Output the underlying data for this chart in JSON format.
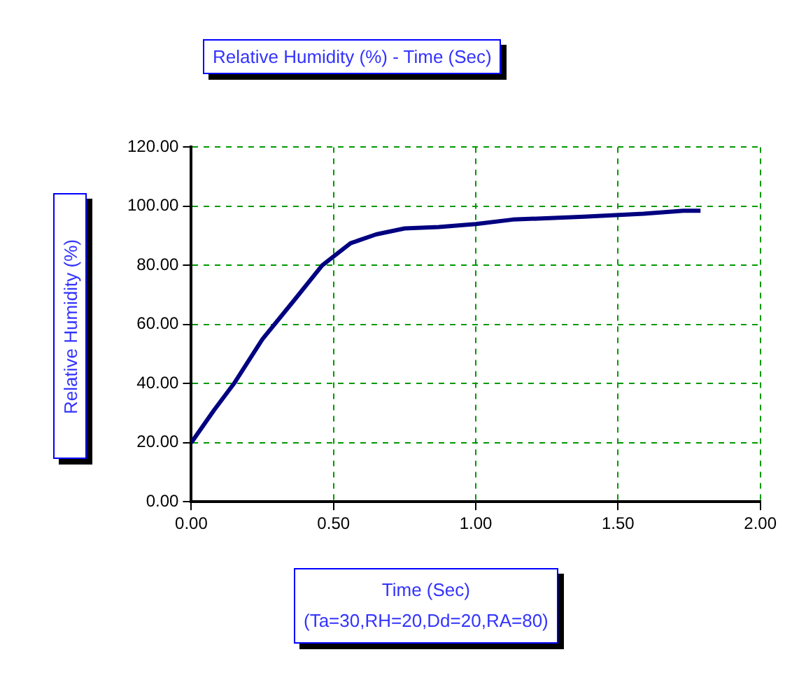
{
  "chart_data": {
    "type": "line",
    "title": "Relative Humidity (%) - Time (Sec)",
    "xlabel": "Time (Sec)",
    "ylabel": "Relative Humidity (%)",
    "annotations": [
      "(Ta=30,RH=20,Dd=20,RA=80)"
    ],
    "x": [
      0,
      0.08,
      0.15,
      0.25,
      0.36,
      0.46,
      0.5,
      0.56,
      0.65,
      0.75,
      0.87,
      1.0,
      1.13,
      1.38,
      1.59,
      1.73,
      1.79
    ],
    "series": [
      {
        "color": "#000080",
        "values": [
          20,
          31,
          40,
          55,
          68,
          80,
          83,
          87.5,
          90.5,
          92.5,
          93,
          94,
          95.5,
          96.5,
          97.5,
          98.5,
          98.5
        ]
      }
    ],
    "xlim": [
      0,
      2
    ],
    "xticks": [
      {
        "value": 0,
        "label": "0.00"
      },
      {
        "value": 0.5,
        "label": "0.50"
      },
      {
        "value": 1,
        "label": "1.00"
      },
      {
        "value": 1.5,
        "label": "1.50"
      },
      {
        "value": 2,
        "label": "2.00"
      }
    ],
    "ylim": [
      0,
      120
    ],
    "yticks": [
      {
        "value": 0,
        "label": "0.00"
      },
      {
        "value": 20,
        "label": "20.00"
      },
      {
        "value": 40,
        "label": "40.00"
      },
      {
        "value": 60,
        "label": "60.00"
      },
      {
        "value": 80,
        "label": "80.00"
      },
      {
        "value": 100,
        "label": "100.00"
      },
      {
        "value": 120,
        "label": "120.00"
      }
    ],
    "grid": true,
    "legend": false,
    "marker": "none",
    "line_style": "solid"
  }
}
